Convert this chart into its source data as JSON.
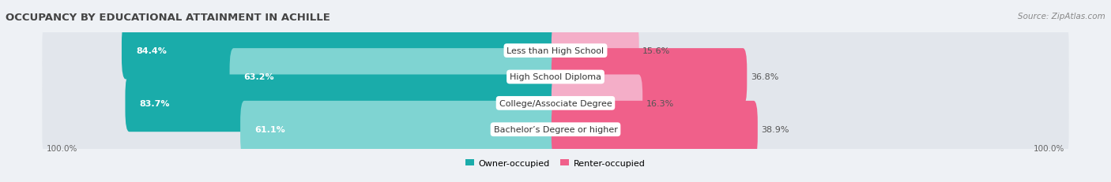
{
  "title": "OCCUPANCY BY EDUCATIONAL ATTAINMENT IN ACHILLE",
  "source": "Source: ZipAtlas.com",
  "categories": [
    "Less than High School",
    "High School Diploma",
    "College/Associate Degree",
    "Bachelor’s Degree or higher"
  ],
  "owner_pct": [
    84.4,
    63.2,
    83.7,
    61.1
  ],
  "renter_pct": [
    15.6,
    36.8,
    16.3,
    38.9
  ],
  "owner_color_dark": "#1aacaa",
  "owner_color_light": "#7fd4d2",
  "renter_color_dark": "#f0608a",
  "renter_color_light": "#f4aec8",
  "bg_color": "#eef1f5",
  "bar_bg": "#e2e6ec",
  "title_fontsize": 9.5,
  "source_fontsize": 7.5,
  "label_fontsize": 8.0,
  "axis_label_fontsize": 7.5,
  "legend_fontsize": 8.0,
  "left_label": "100.0%",
  "right_label": "100.0%"
}
